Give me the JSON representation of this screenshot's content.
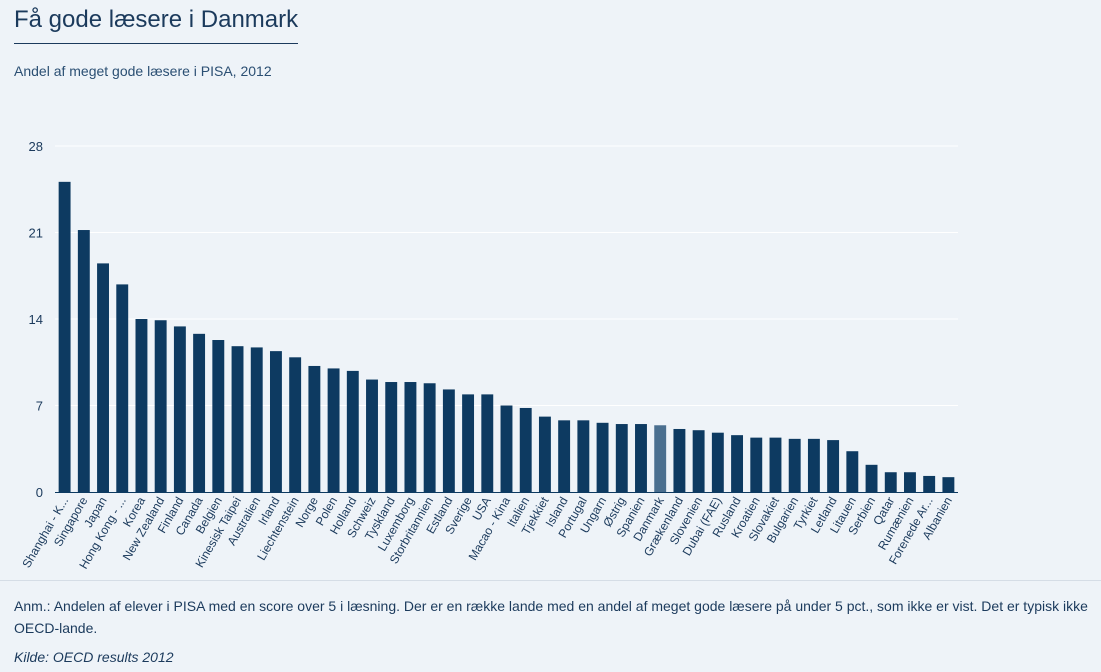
{
  "title": "Få gode læsere i Danmark",
  "subtitle": "Andel af meget gode læsere i PISA, 2012",
  "note_label": "Anm.:",
  "note_text": " Andelen af elever i PISA med en score over 5 i læsning. Der er en række lande med en andel af meget gode læsere på under 5 pct., som ikke er vist. Det er typisk ikke OECD-lande.",
  "source": "Kilde: OECD results 2012",
  "colors": {
    "bar": "#0d3a61",
    "highlight": "#4a6f8f",
    "grid": "#ffffff",
    "text": "#1b3a5c"
  },
  "chart_data": {
    "type": "bar",
    "ylim": [
      0,
      28
    ],
    "yticks": [
      0,
      7,
      14,
      21,
      28
    ],
    "grid": true,
    "highlight": "Danmark",
    "categories": [
      "Shanghai - K...",
      "Singapore",
      "Japan",
      "Hong Kong - ...",
      "Korea",
      "New Zealand",
      "Finland",
      "Canada",
      "Belgien",
      "Kinesisk Taipei",
      "Australien",
      "Irland",
      "Liechtenstein",
      "Norge",
      "Polen",
      "Holland",
      "Schweiz",
      "Tyskland",
      "Luxemborg",
      "Storbritannien",
      "Estland",
      "Sverige",
      "USA",
      "Macao - Kina",
      "Italien",
      "Tjekkiet",
      "Island",
      "Portugal",
      "Ungarn",
      "Østrig",
      "Spanien",
      "Danmark",
      "Grækenland",
      "Slovenien",
      "Dubai (FAE)",
      "Rusland",
      "Kroatien",
      "Slovakiet",
      "Bulgarien",
      "Tyrkiet",
      "Letland",
      "Litauen",
      "Serbien",
      "Qatar",
      "Rumænien",
      "Forenede Ar...",
      "Albanien"
    ],
    "values": [
      25.1,
      21.2,
      18.5,
      16.8,
      14.0,
      13.9,
      13.4,
      12.8,
      12.3,
      11.8,
      11.7,
      11.4,
      10.9,
      10.2,
      10.0,
      9.8,
      9.1,
      8.9,
      8.9,
      8.8,
      8.3,
      7.9,
      7.9,
      7.0,
      6.8,
      6.1,
      5.8,
      5.8,
      5.6,
      5.5,
      5.5,
      5.4,
      5.1,
      5.0,
      4.8,
      4.6,
      4.4,
      4.4,
      4.3,
      4.3,
      4.2,
      3.3,
      2.2,
      1.6,
      1.6,
      1.3,
      1.2
    ]
  }
}
